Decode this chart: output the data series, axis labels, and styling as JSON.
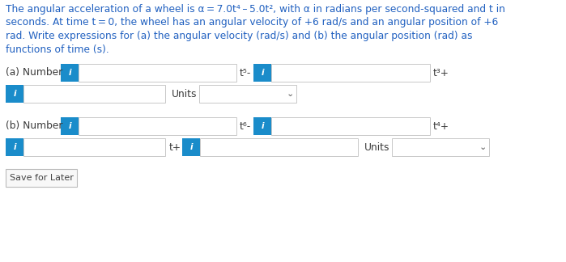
{
  "bg_color": "#ffffff",
  "text_color": "#3a3a3a",
  "blue_text_color": "#2060c0",
  "blue_btn_color": "#1a8cca",
  "input_border": "#c0c0c0",
  "title_lines": [
    "The angular acceleration of a wheel is α = 7.0t⁴ – 5.0t², with α in radians per second-squared and t in",
    "seconds. At time t = 0, the wheel has an angular velocity of +6 rad/s and an angular position of +6",
    "rad. Write expressions for (a) the angular velocity (rad/s) and (b) the angular position (rad) as",
    "functions of time (s)."
  ],
  "label_a": "(a) Number",
  "label_t5": "t⁵-",
  "label_t3": "t³+",
  "label_units": "Units",
  "label_b": "(b) Number",
  "label_t6": "t⁶-",
  "label_t4": "t⁴+",
  "label_tp": "t+",
  "label_save": "Save for Later",
  "figw": 6.99,
  "figh": 3.24,
  "dpi": 100
}
